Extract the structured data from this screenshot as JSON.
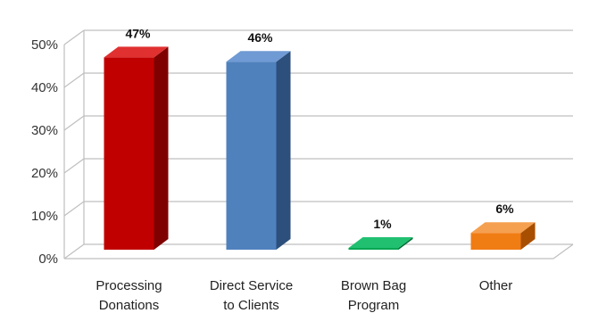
{
  "chart_data": {
    "type": "bar",
    "title": "",
    "xlabel": "",
    "ylabel": "",
    "categories": [
      [
        "Processing",
        "Donations"
      ],
      [
        "Direct Service",
        "to Clients"
      ],
      [
        "Brown Bag",
        "Program"
      ],
      [
        "Other"
      ]
    ],
    "values": [
      47,
      46,
      1,
      6
    ],
    "data_labels": [
      "47%",
      "46%",
      "1%",
      "6%"
    ],
    "ylim": [
      0,
      50
    ],
    "y_ticks": [
      "0%",
      "10%",
      "20%",
      "30%",
      "40%",
      "50%"
    ],
    "grid": true,
    "legend": "none",
    "three_d": true,
    "colors": [
      {
        "front": "#c00000",
        "side": "#7f0000",
        "top": "#e03030"
      },
      {
        "front": "#4f81bd",
        "side": "#2c4f7c",
        "top": "#6f9ad4"
      },
      {
        "front": "#00a651",
        "side": "#006b33",
        "top": "#20c070"
      },
      {
        "front": "#f07c14",
        "side": "#a84e00",
        "top": "#f5a050"
      }
    ]
  }
}
